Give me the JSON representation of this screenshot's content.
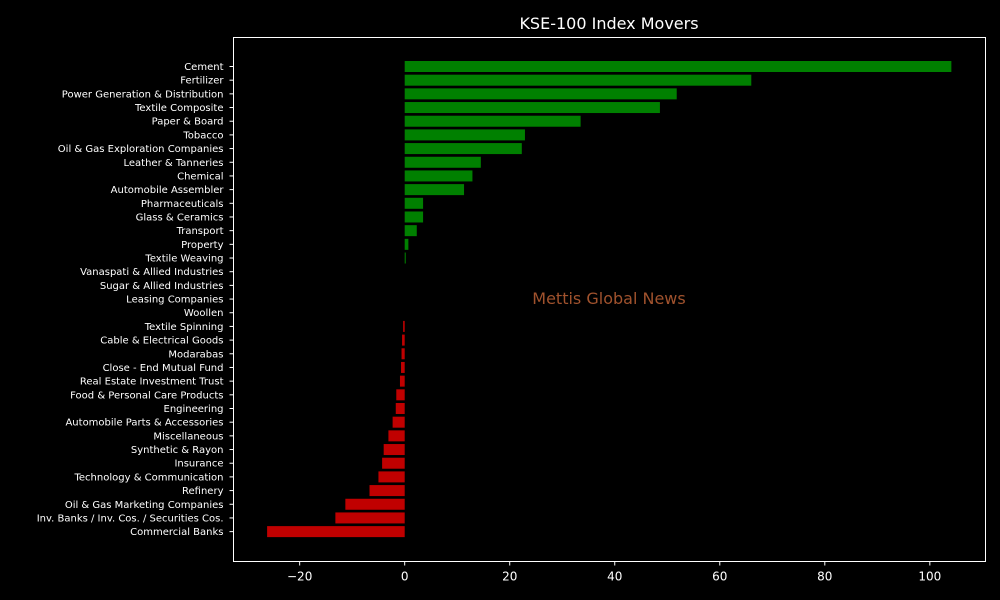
{
  "chart_data": {
    "type": "bar",
    "orientation": "horizontal",
    "title": "KSE-100 Index Movers",
    "xlabel": "",
    "ylabel": "",
    "xlim": [
      -32.6,
      110.6
    ],
    "xticks": [
      -20,
      0,
      20,
      40,
      60,
      80,
      100
    ],
    "xtick_labels": [
      "−20",
      "0",
      "20",
      "40",
      "60",
      "80",
      "100"
    ],
    "grid": false,
    "categories": [
      "Cement",
      "Fertilizer",
      "Power Generation & Distribution",
      "Textile Composite",
      "Paper & Board",
      "Tobacco",
      "Oil & Gas Exploration Companies",
      "Leather & Tanneries",
      "Chemical",
      "Automobile Assembler",
      "Pharmaceuticals",
      "Glass & Ceramics",
      "Transport",
      "Property",
      "Textile Weaving",
      "Vanaspati & Allied Industries",
      "Sugar & Allied Industries",
      "Leasing Companies",
      "Woollen",
      "Textile Spinning",
      "Cable & Electrical Goods",
      "Modarabas",
      "Close - End Mutual Fund",
      "Real Estate Investment Trust",
      "Food & Personal Care Products",
      "Engineering",
      "Automobile Parts & Accessories",
      "Miscellaneous",
      "Synthetic & Rayon",
      "Insurance",
      "Technology & Communication",
      "Refinery",
      "Oil & Gas Marketing Companies",
      "Inv. Banks / Inv. Cos. / Securities Cos.",
      "Commercial Banks"
    ],
    "values": [
      104.1,
      66.0,
      51.8,
      48.6,
      33.5,
      22.9,
      22.3,
      14.5,
      12.9,
      11.3,
      3.5,
      3.5,
      2.3,
      0.7,
      0.2,
      0,
      0,
      0,
      0,
      -0.3,
      -0.5,
      -0.6,
      -0.7,
      -0.9,
      -1.6,
      -1.7,
      -2.3,
      -3.1,
      -4.0,
      -4.3,
      -5.0,
      -6.7,
      -11.3,
      -13.2,
      -26.2
    ],
    "colors": {
      "positive": "#008000",
      "negative": "#c00000"
    }
  },
  "watermark": {
    "text": "Mettis Global News",
    "color": "#a0522d"
  },
  "theme": {
    "background": "#000000",
    "foreground": "#ffffff"
  }
}
